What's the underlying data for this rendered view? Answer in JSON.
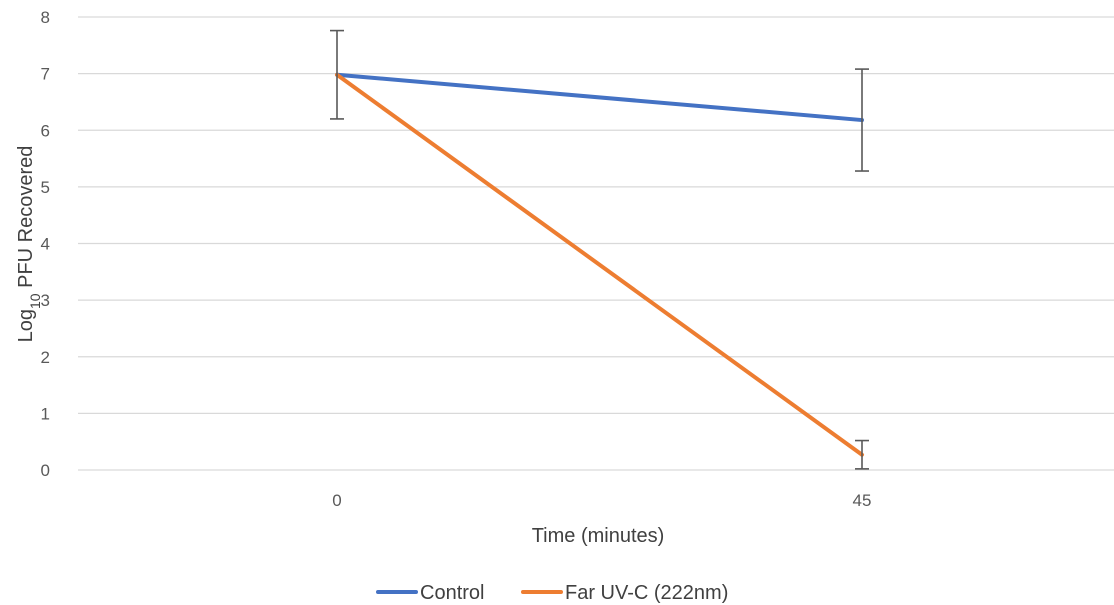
{
  "chart_data": {
    "type": "line",
    "title": "",
    "xlabel": "Time (minutes)",
    "ylabel": {
      "prefix": "Log",
      "subscript": "10",
      "suffix": " PFU Recovered"
    },
    "x": [
      "0",
      "45"
    ],
    "ylim": [
      0,
      8
    ],
    "yticks": [
      0,
      1,
      2,
      3,
      4,
      5,
      6,
      7,
      8
    ],
    "grid": true,
    "legend_position": "bottom",
    "series": [
      {
        "name": "Control",
        "color": "#4472C4",
        "values": [
          6.98,
          6.18
        ],
        "error": [
          0.78,
          0.9
        ]
      },
      {
        "name": "Far UV-C (222nm)",
        "color": "#ED7D31",
        "values": [
          6.98,
          0.27
        ],
        "error": [
          null,
          0.25
        ]
      }
    ]
  }
}
